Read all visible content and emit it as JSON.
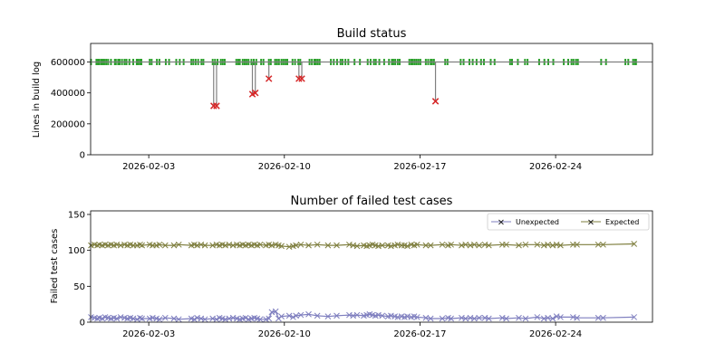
{
  "chart_data": [
    {
      "type": "scatter",
      "title": "Build status",
      "xlabel": "",
      "ylabel": "Lines in build log",
      "xlim": [
        "2026-01-31",
        "2026-03-01"
      ],
      "ylim": [
        0,
        720000
      ],
      "yticks": [
        0,
        200000,
        400000,
        600000
      ],
      "ytick_labels": [
        "0",
        "200000",
        "400000",
        "600000"
      ],
      "xticks": [
        "2026-02-03",
        "2026-02-10",
        "2026-02-17",
        "2026-02-24"
      ],
      "grid": false,
      "colors": {
        "success": "#2ca02c",
        "failure": "#d62728",
        "stem": "#808080",
        "baseline": "#808080"
      },
      "baseline_value": 600000,
      "success_days": [
        0.02,
        0.3,
        0.38,
        0.45,
        0.55,
        0.62,
        0.7,
        0.8,
        0.9,
        1.05,
        1.25,
        1.3,
        1.42,
        1.5,
        1.62,
        1.75,
        1.85,
        2.0,
        2.2,
        2.38,
        2.45,
        2.55,
        2.62,
        3.05,
        3.15,
        3.42,
        3.55,
        3.88,
        4.05,
        4.42,
        4.6,
        4.8,
        5.2,
        5.3,
        5.42,
        5.55,
        5.72,
        5.82,
        6.3,
        6.42,
        6.55,
        6.72,
        6.82,
        6.92,
        7.52,
        7.62,
        7.7,
        7.85,
        7.95,
        8.05,
        8.15,
        8.3,
        8.42,
        8.55,
        8.8,
        8.92,
        9.2,
        9.3,
        9.52,
        9.62,
        9.72,
        9.85,
        9.95,
        10.05,
        10.15,
        10.42,
        10.55,
        10.72,
        10.82,
        11.3,
        11.42,
        11.55,
        11.62,
        11.72,
        11.82,
        12.4,
        12.55,
        12.72,
        12.9,
        13.0,
        13.15,
        13.3,
        13.62,
        13.9,
        14.3,
        14.45,
        14.62,
        14.72,
        14.9,
        15.15,
        15.4,
        15.55,
        15.62,
        15.72,
        15.85,
        15.95,
        16.45,
        16.55,
        16.62,
        16.72,
        16.82,
        16.92,
        17.02,
        17.3,
        17.42,
        17.55,
        17.62,
        17.72,
        18.3,
        18.42,
        19.1,
        19.25,
        19.55,
        19.72,
        19.92,
        20.15,
        20.3,
        20.65,
        20.85,
        21.65,
        21.75,
        22.05,
        22.42,
        22.55,
        23.15,
        23.42,
        23.62,
        23.88,
        24.42,
        24.65,
        24.82,
        24.92,
        25.05,
        25.15,
        26.35,
        26.6,
        27.6,
        27.75,
        28.0,
        28.1,
        28.15
      ],
      "failures": [
        {
          "day": 6.35,
          "value": 316000
        },
        {
          "day": 6.5,
          "value": 316000
        },
        {
          "day": 8.35,
          "value": 392000
        },
        {
          "day": 8.5,
          "value": 400000
        },
        {
          "day": 9.2,
          "value": 492000
        },
        {
          "day": 10.75,
          "value": 492000
        },
        {
          "day": 10.9,
          "value": 492000
        },
        {
          "day": 17.8,
          "value": 346000
        }
      ]
    },
    {
      "type": "line",
      "title": "Number of failed test cases",
      "xlabel": "",
      "ylabel": "Failed test cases",
      "xlim": [
        "2026-01-31",
        "2026-03-01"
      ],
      "ylim": [
        0,
        155
      ],
      "yticks": [
        0,
        50,
        100,
        150
      ],
      "ytick_labels": [
        "0",
        "50",
        "100",
        "150"
      ],
      "xticks": [
        "2026-02-03",
        "2026-02-10",
        "2026-02-17",
        "2026-02-24"
      ],
      "grid": false,
      "legend_position": "top-right",
      "x_days": [
        0.02,
        0.2,
        0.35,
        0.45,
        0.6,
        0.75,
        0.9,
        1.05,
        1.2,
        1.35,
        1.55,
        1.75,
        1.9,
        2.05,
        2.2,
        2.4,
        2.55,
        2.65,
        3.05,
        3.2,
        3.4,
        3.55,
        3.85,
        4.3,
        4.55,
        5.2,
        5.35,
        5.5,
        5.7,
        5.9,
        6.3,
        6.5,
        6.65,
        6.8,
        6.95,
        7.15,
        7.35,
        7.55,
        7.7,
        7.85,
        8.0,
        8.15,
        8.3,
        8.45,
        8.6,
        8.75,
        9.05,
        9.2,
        9.35,
        9.55,
        9.7,
        9.85,
        10.25,
        10.45,
        10.6,
        10.85,
        11.25,
        11.7,
        12.25,
        12.7,
        13.35,
        13.55,
        13.75,
        14.1,
        14.25,
        14.4,
        14.55,
        14.7,
        14.85,
        15.05,
        15.35,
        15.5,
        15.7,
        15.85,
        16.05,
        16.2,
        16.35,
        16.55,
        16.7,
        16.85,
        17.3,
        17.55,
        18.15,
        18.45,
        18.6,
        19.15,
        19.35,
        19.6,
        19.8,
        20.05,
        20.35,
        20.55,
        21.25,
        21.45,
        22.1,
        22.45,
        23.05,
        23.4,
        23.6,
        23.85,
        24.05,
        24.25,
        24.9,
        25.1,
        26.2,
        26.45,
        28.05
      ],
      "series": [
        {
          "name": "Unexpected",
          "color": "#7f7fbf",
          "values": [
            7,
            6,
            5,
            6,
            5,
            7,
            6,
            5,
            6,
            5,
            7,
            6,
            5,
            6,
            5,
            4,
            6,
            5,
            5,
            6,
            5,
            4,
            6,
            5,
            4,
            5,
            4,
            6,
            5,
            4,
            5,
            4,
            6,
            5,
            4,
            5,
            6,
            5,
            4,
            5,
            6,
            4,
            5,
            6,
            5,
            4,
            4,
            5,
            14,
            15,
            5,
            8,
            9,
            7,
            9,
            10,
            11,
            9,
            8,
            9,
            10,
            9,
            10,
            9,
            10,
            11,
            10,
            9,
            10,
            9,
            8,
            9,
            8,
            7,
            8,
            7,
            8,
            7,
            8,
            7,
            6,
            5,
            5,
            6,
            5,
            6,
            5,
            6,
            5,
            6,
            6,
            5,
            6,
            5,
            6,
            5,
            7,
            5,
            6,
            5,
            8,
            7,
            7,
            6,
            6,
            6,
            7
          ]
        },
        {
          "name": "Expected",
          "color": "#7f7f3f",
          "values": [
            107,
            108,
            107,
            108,
            107,
            108,
            107,
            108,
            107,
            108,
            107,
            108,
            107,
            108,
            107,
            107,
            108,
            107,
            108,
            107,
            107,
            108,
            107,
            107,
            108,
            107,
            108,
            107,
            108,
            107,
            107,
            108,
            107,
            108,
            107,
            108,
            107,
            108,
            107,
            108,
            107,
            108,
            107,
            108,
            107,
            108,
            107,
            108,
            107,
            108,
            107,
            106,
            105,
            106,
            107,
            108,
            107,
            108,
            107,
            107,
            108,
            107,
            106,
            107,
            106,
            107,
            108,
            107,
            106,
            107,
            107,
            106,
            107,
            108,
            107,
            107,
            106,
            108,
            107,
            108,
            107,
            107,
            108,
            107,
            108,
            107,
            108,
            107,
            108,
            107,
            108,
            107,
            108,
            108,
            107,
            108,
            108,
            107,
            108,
            107,
            108,
            107,
            108,
            108,
            108,
            108,
            109
          ]
        }
      ]
    }
  ]
}
